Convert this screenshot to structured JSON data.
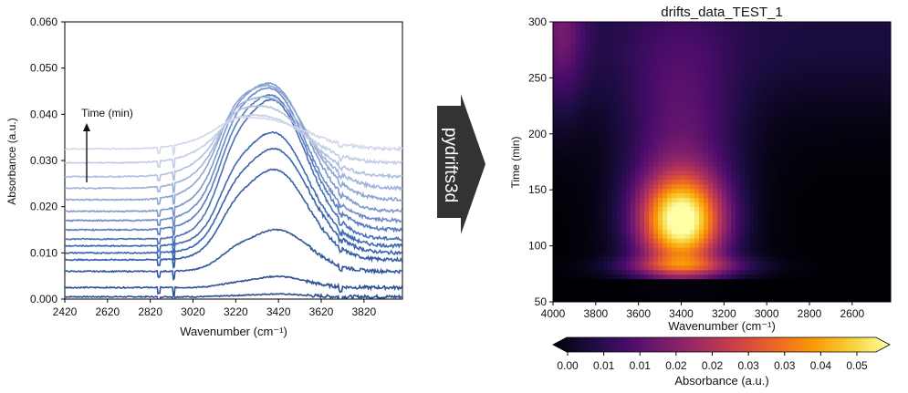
{
  "arrow_label": "pydrifts3d",
  "left_chart": {
    "type": "line",
    "xlabel": "Wavenumber (cm⁻¹)",
    "ylabel": "Absorbance (a.u.)",
    "annotation": "Time (min)",
    "xlim": [
      2420,
      4000
    ],
    "ylim": [
      0,
      0.06
    ],
    "xticks": [
      2420,
      2620,
      2820,
      3020,
      3220,
      3420,
      3620,
      3820
    ],
    "yticks": [
      "0.000",
      "0.010",
      "0.020",
      "0.030",
      "0.040",
      "0.050",
      "0.060"
    ],
    "grid": false,
    "colors": [
      "#2e4f8f",
      "#2f5294",
      "#32589c",
      "#365ea6",
      "#3a63ad",
      "#3f68b4",
      "#4a70b8",
      "#5a7cbe",
      "#6c8ac5",
      "#7e98cc",
      "#8fa6d3",
      "#a0b3d9",
      "#b2c1df",
      "#c2cde5",
      "#d0d8ea"
    ],
    "series": [
      {
        "baseline": 0.0005,
        "peak": 0.0006,
        "center": 3410,
        "width": 120
      },
      {
        "baseline": 0.0025,
        "peak": 0.0024,
        "center": 3415,
        "width": 130
      },
      {
        "baseline": 0.006,
        "peak": 0.009,
        "center": 3410,
        "width": 150
      },
      {
        "baseline": 0.0085,
        "peak": 0.0195,
        "center": 3400,
        "width": 155
      },
      {
        "baseline": 0.01,
        "peak": 0.0225,
        "center": 3400,
        "width": 160
      },
      {
        "baseline": 0.0115,
        "peak": 0.0245,
        "center": 3395,
        "width": 160
      },
      {
        "baseline": 0.013,
        "peak": 0.03,
        "center": 3390,
        "width": 160
      },
      {
        "baseline": 0.015,
        "peak": 0.029,
        "center": 3385,
        "width": 165
      },
      {
        "baseline": 0.017,
        "peak": 0.0285,
        "center": 3380,
        "width": 165
      },
      {
        "baseline": 0.019,
        "peak": 0.0275,
        "center": 3380,
        "width": 170
      },
      {
        "baseline": 0.0215,
        "peak": 0.0245,
        "center": 3375,
        "width": 175
      },
      {
        "baseline": 0.024,
        "peak": 0.0195,
        "center": 3370,
        "width": 180
      },
      {
        "baseline": 0.0265,
        "peak": 0.015,
        "center": 3360,
        "width": 185
      },
      {
        "baseline": 0.0295,
        "peak": 0.01,
        "center": 3350,
        "width": 190
      },
      {
        "baseline": 0.0325,
        "peak": 0.0065,
        "center": 3340,
        "width": 200
      }
    ]
  },
  "chart_data": {
    "type": "heatmap",
    "title": "drifts_data_TEST_1",
    "xlabel": "Wavenumber (cm⁻¹)",
    "ylabel": "Time (min)",
    "xlim": [
      4000,
      2420
    ],
    "ylim": [
      50,
      300
    ],
    "xticks": [
      4000,
      3800,
      3600,
      3400,
      3200,
      3000,
      2800,
      2600
    ],
    "yticks": [
      50,
      100,
      150,
      200,
      250,
      300
    ],
    "colorbar": {
      "label": "Absorbance (a.u.)",
      "tick_labels": [
        "0.00",
        "0.01",
        "0.01",
        "0.02",
        "0.02",
        "0.03",
        "0.03",
        "0.04",
        "0.05"
      ],
      "range": [
        0,
        0.055
      ]
    },
    "colormap": [
      "#000004",
      "#1b0c41",
      "#4a0c6b",
      "#781c6d",
      "#a52c60",
      "#cf4446",
      "#ed6925",
      "#fb9b06",
      "#f7d13d",
      "#fcffa4"
    ],
    "hotspot": {
      "wavenumber": 3400,
      "time": 122,
      "value": 0.047
    }
  }
}
